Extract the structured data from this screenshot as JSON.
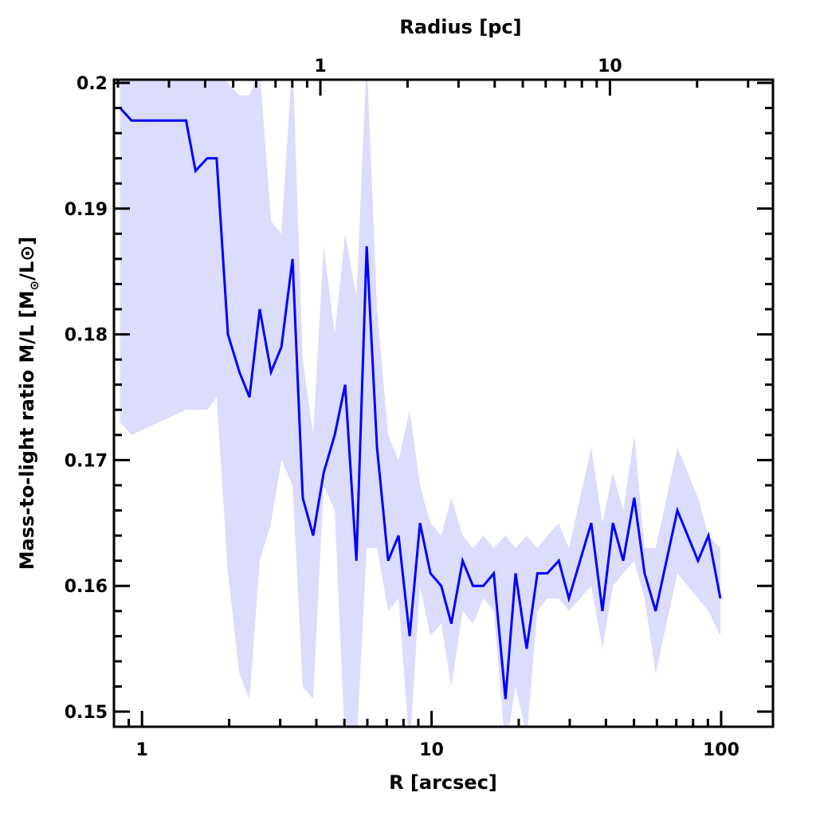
{
  "chart_data": {
    "type": "line",
    "title": "",
    "xlabel": "R [arcsec]",
    "ylabel_main": "Mass-to-light ratio M/L [M",
    "ylabel_sub": "⊙",
    "ylabel_tail": "/L⊙]",
    "top_xlabel": "Radius [pc]",
    "xscale": "log",
    "xlim": [
      0.8,
      151
    ],
    "ylim": [
      0.1488,
      0.20025
    ],
    "x_ticks": [
      1,
      10,
      100
    ],
    "x_tick_labels": [
      "1",
      "10",
      "100"
    ],
    "y_ticks": [
      0.15,
      0.16,
      0.17,
      0.18,
      0.19,
      0.2
    ],
    "y_tick_labels": [
      "0.15",
      "0.16",
      "0.17",
      "0.18",
      "0.19",
      "0.2"
    ],
    "top_ticks_pc": [
      1,
      10
    ],
    "top_tick_labels": [
      "1",
      "10"
    ],
    "arcsec_per_pc": 4.13,
    "colors": {
      "line": "#0000ff",
      "band": "#dcdcfc",
      "axis": "#000000"
    },
    "grid": false,
    "x": [
      0.84,
      0.92,
      1.42,
      1.53,
      1.68,
      1.81,
      1.98,
      2.17,
      2.35,
      2.55,
      2.79,
      3.03,
      3.31,
      3.59,
      3.9,
      4.24,
      4.63,
      5.03,
      5.5,
      5.97,
      6.48,
      7.08,
      7.69,
      8.4,
      9.12,
      9.91,
      10.8,
      11.7,
      12.8,
      13.9,
      15.1,
      16.4,
      18.0,
      19.5,
      21.3,
      23.2,
      25.1,
      27.5,
      29.8,
      35.6,
      38.9,
      42.3,
      45.9,
      50.1,
      54.4,
      59.4,
      70.6,
      83.2,
      90.4,
      99.4
    ],
    "series": [
      {
        "name": "M/L",
        "values": [
          0.198,
          0.197,
          0.197,
          0.193,
          0.194,
          0.194,
          0.18,
          0.177,
          0.175,
          0.182,
          0.177,
          0.179,
          0.186,
          0.167,
          0.164,
          0.169,
          0.172,
          0.176,
          0.162,
          0.187,
          0.171,
          0.162,
          0.164,
          0.156,
          0.165,
          0.161,
          0.16,
          0.157,
          0.162,
          0.16,
          0.16,
          0.161,
          0.151,
          0.161,
          0.155,
          0.161,
          0.161,
          0.162,
          0.159,
          0.165,
          0.158,
          0.165,
          0.162,
          0.167,
          0.161,
          0.158,
          0.166,
          0.162,
          0.164,
          0.159
        ]
      },
      {
        "name": "upper",
        "values": [
          0.202,
          0.202,
          0.202,
          0.202,
          0.201,
          0.201,
          0.2,
          0.199,
          0.199,
          0.201,
          0.189,
          0.188,
          0.202,
          0.178,
          0.172,
          0.187,
          0.18,
          0.188,
          0.183,
          0.202,
          0.182,
          0.172,
          0.17,
          0.174,
          0.168,
          0.165,
          0.164,
          0.167,
          0.164,
          0.163,
          0.164,
          0.163,
          0.164,
          0.163,
          0.164,
          0.163,
          0.164,
          0.165,
          0.163,
          0.171,
          0.165,
          0.169,
          0.166,
          0.172,
          0.163,
          0.163,
          0.171,
          0.167,
          0.164,
          0.163
        ]
      },
      {
        "name": "lower",
        "values": [
          0.173,
          0.172,
          0.174,
          0.174,
          0.174,
          0.175,
          0.161,
          0.153,
          0.151,
          0.162,
          0.165,
          0.17,
          0.168,
          0.152,
          0.151,
          0.168,
          0.166,
          0.147,
          0.147,
          0.163,
          0.163,
          0.158,
          0.159,
          0.147,
          0.16,
          0.156,
          0.157,
          0.152,
          0.158,
          0.157,
          0.159,
          0.158,
          0.147,
          0.152,
          0.148,
          0.158,
          0.159,
          0.159,
          0.158,
          0.16,
          0.155,
          0.16,
          0.161,
          0.162,
          0.159,
          0.153,
          0.161,
          0.159,
          0.158,
          0.156
        ]
      }
    ]
  }
}
